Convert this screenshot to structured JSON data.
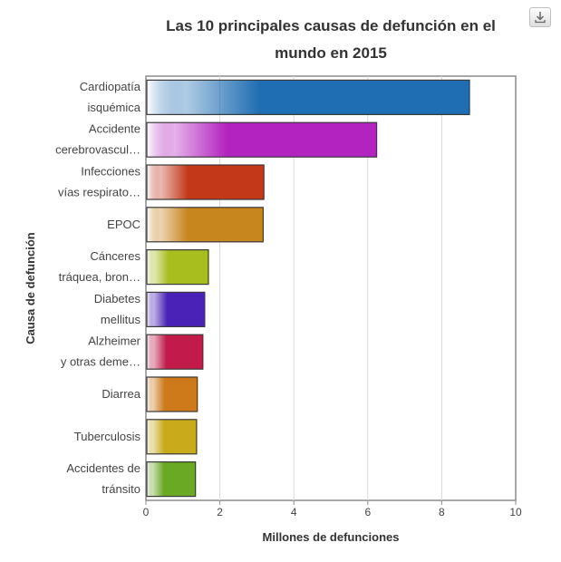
{
  "chart_data": {
    "type": "bar",
    "orientation": "horizontal",
    "title_line1": "Las 10 principales causas de defunción en el",
    "title_line2": "mundo en 2015",
    "xlabel": "Millones de defunciones",
    "ylabel": "Causa de defunción",
    "xlim": [
      0,
      10
    ],
    "x_ticks": [
      "0",
      "2",
      "4",
      "6",
      "8",
      "10"
    ],
    "grid": "vertical",
    "legend": "none",
    "categories": [
      [
        "Cardiopatía",
        "isquémica"
      ],
      [
        "Accidente",
        "cerebrovascul…"
      ],
      [
        "Infecciones",
        "vías respirato…"
      ],
      [
        "EPOC"
      ],
      [
        "Cánceres",
        "tráquea, bron…"
      ],
      [
        "Diabetes",
        "mellitus"
      ],
      [
        "Alzheimer",
        "y otras deme…"
      ],
      [
        "Diarrea"
      ],
      [
        "Tuberculosis"
      ],
      [
        "Accidentes de",
        "tránsito"
      ]
    ],
    "values": [
      8.75,
      6.24,
      3.19,
      3.17,
      1.69,
      1.59,
      1.54,
      1.39,
      1.37,
      1.34
    ],
    "colors": [
      "#1f6db3",
      "#b223bf",
      "#c4381a",
      "#c8861e",
      "#a8be1e",
      "#4a22b8",
      "#c21a4a",
      "#cf7a1a",
      "#c9aa1a",
      "#6aa923"
    ]
  }
}
